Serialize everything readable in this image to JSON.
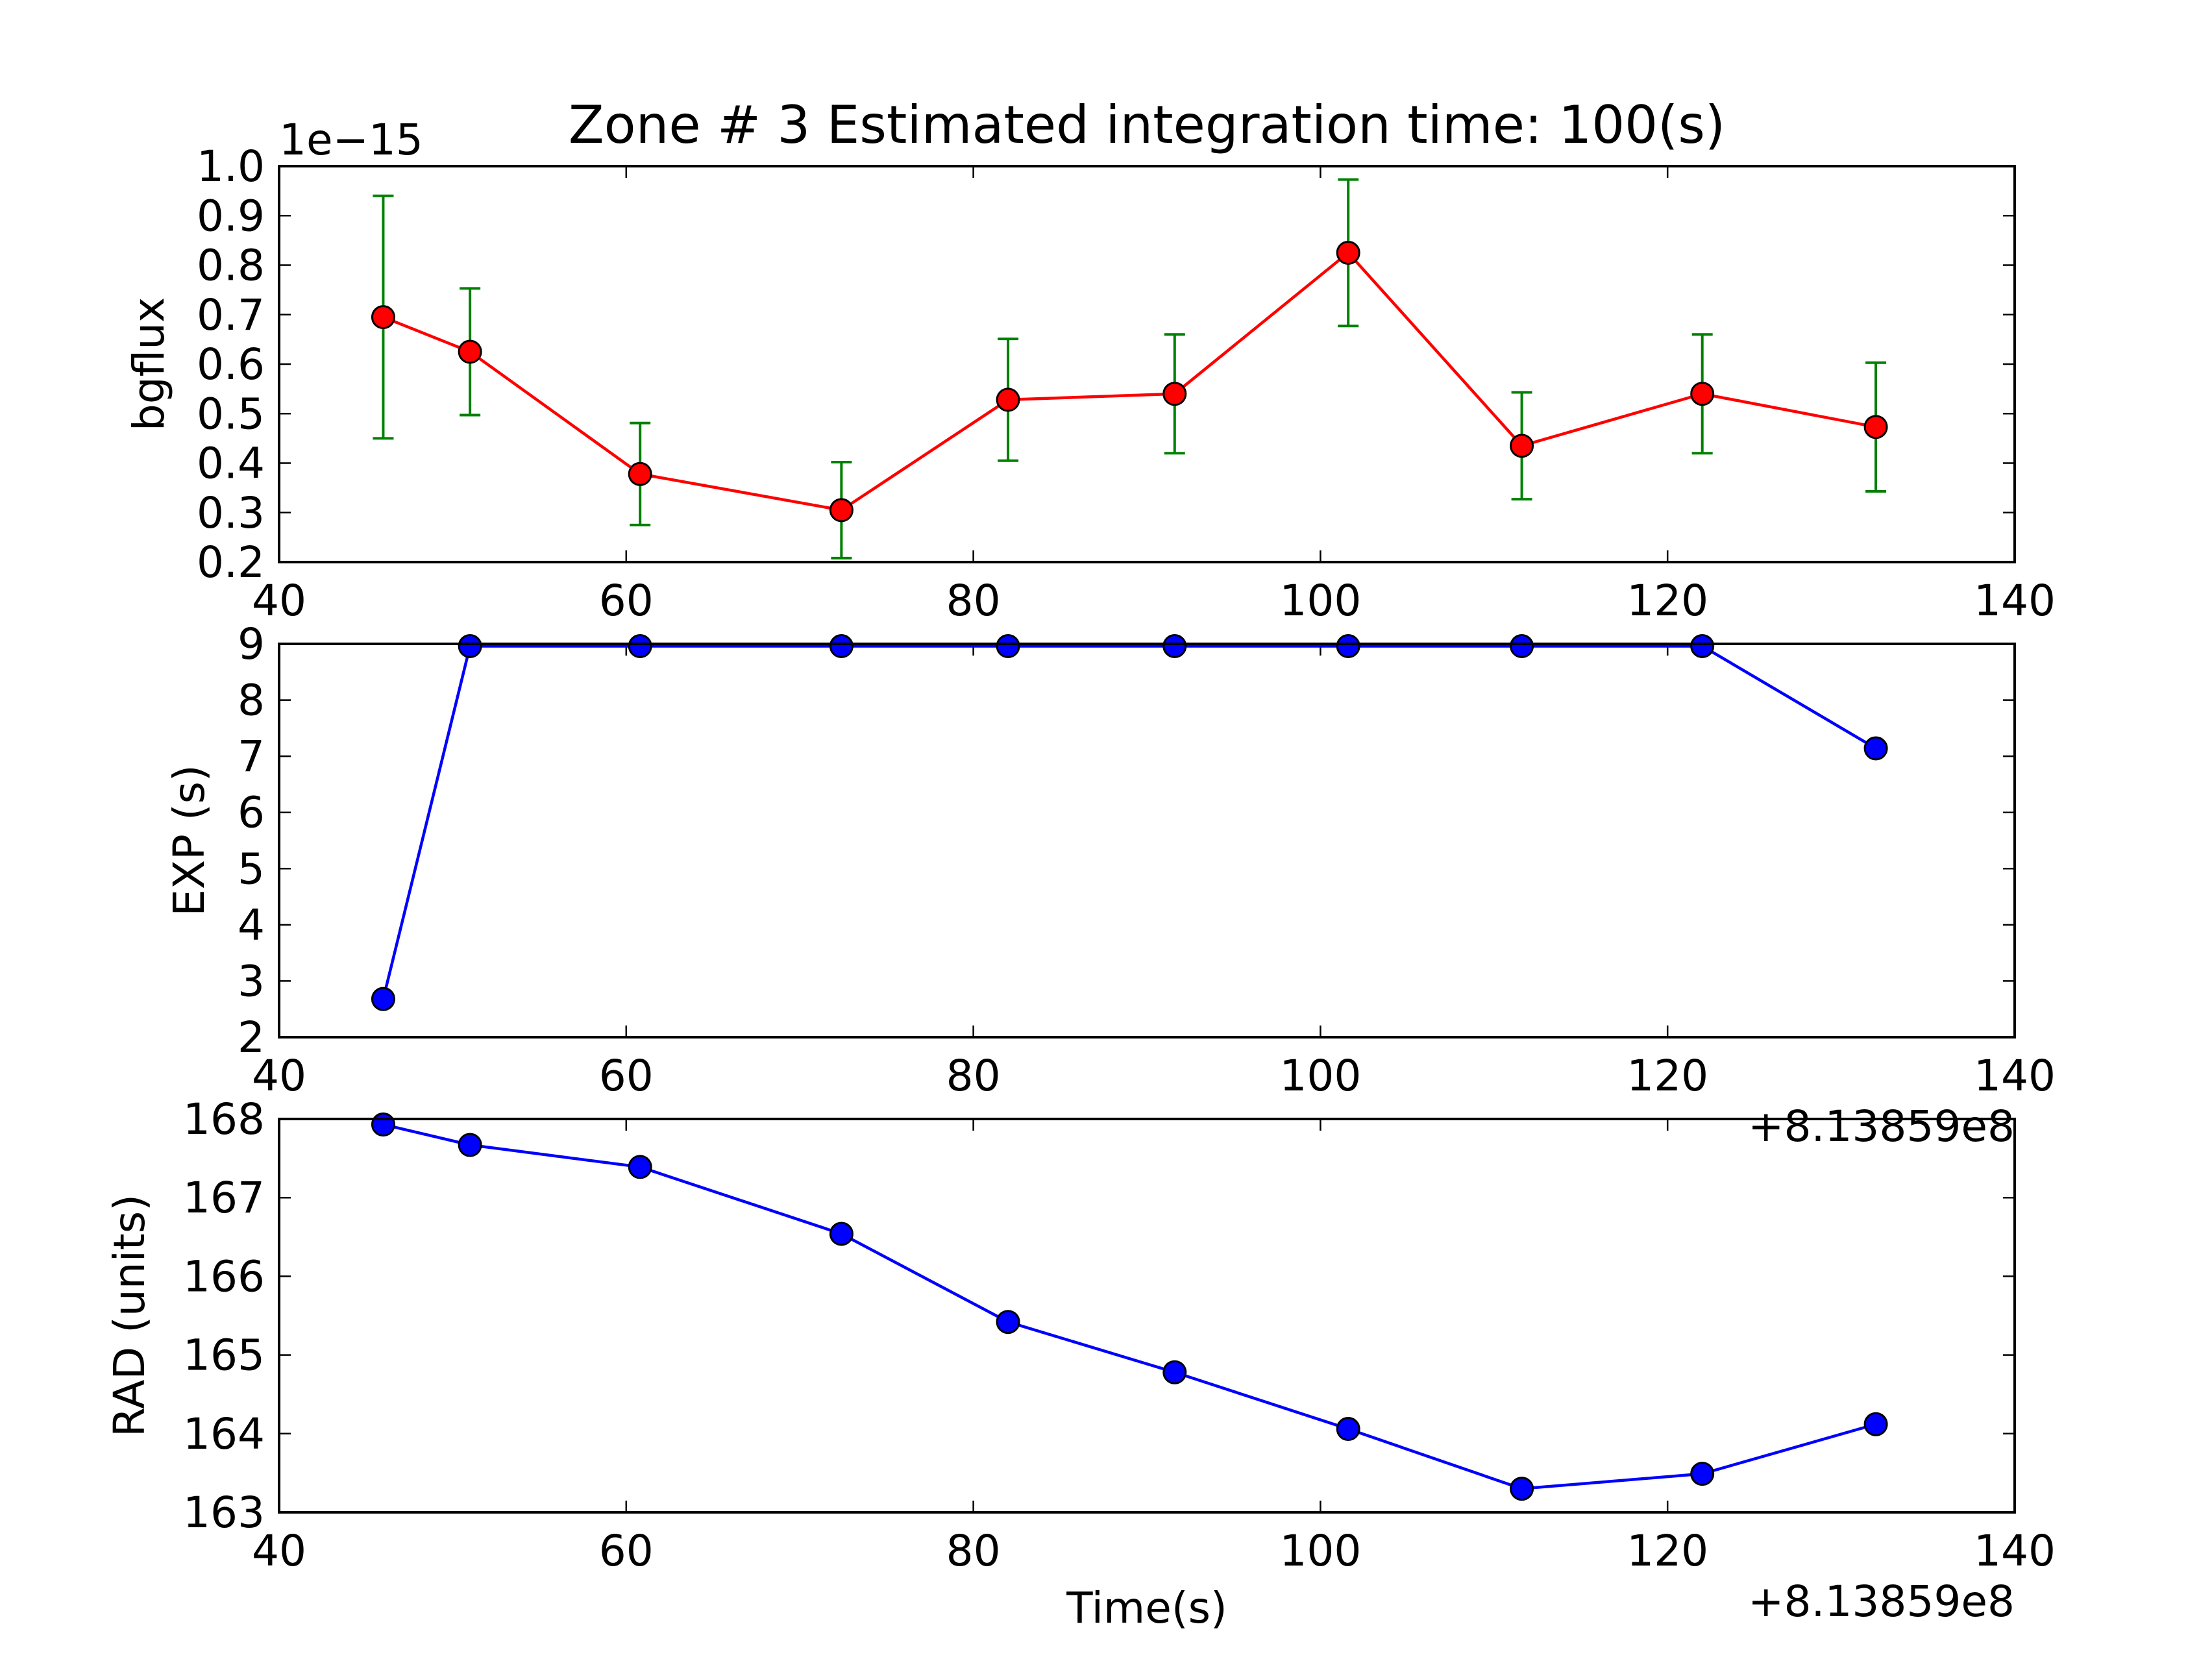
{
  "chart_data": [
    {
      "type": "line",
      "title": "Zone # 3 Estimated integration time: 100(s)",
      "ylabel": "bgflux",
      "xlabel": "",
      "x_offset_label": "",
      "y_scale_label": "1e−15",
      "xlim": [
        40,
        140
      ],
      "ylim": [
        0.2,
        1.0
      ],
      "xticks": [
        "40",
        "60",
        "80",
        "100",
        "120",
        "140"
      ],
      "yticks": [
        "0.2",
        "0.3",
        "0.4",
        "0.5",
        "0.6",
        "0.7",
        "0.8",
        "0.9",
        "1.0"
      ],
      "line_color": "#ff0000",
      "marker_color": "#ff0000",
      "error_color": "#008000",
      "series": [
        {
          "x": [
            46,
            51,
            60.8,
            72.4,
            82,
            91.6,
            101.6,
            111.6,
            122,
            132
          ],
          "y": [
            0.695,
            0.625,
            0.378,
            0.305,
            0.528,
            0.54,
            0.825,
            0.435,
            0.54,
            0.473
          ],
          "yerr": [
            0.245,
            0.128,
            0.103,
            0.097,
            0.123,
            0.12,
            0.148,
            0.108,
            0.12,
            0.13
          ]
        }
      ],
      "grid": false
    },
    {
      "type": "line",
      "ylabel": "EXP (s)",
      "xlabel": "",
      "x_offset_label": "+8.13859e8",
      "xlim": [
        40,
        140
      ],
      "ylim": [
        2,
        9
      ],
      "xticks": [
        "40",
        "60",
        "80",
        "100",
        "120",
        "140"
      ],
      "yticks": [
        "2",
        "3",
        "4",
        "5",
        "6",
        "7",
        "8",
        "9"
      ],
      "line_color": "#0000ff",
      "marker_color": "#0000ff",
      "series": [
        {
          "x": [
            46,
            51,
            60.8,
            72.4,
            82,
            91.6,
            101.6,
            111.6,
            122,
            132
          ],
          "y": [
            2.68,
            8.96,
            8.96,
            8.96,
            8.96,
            8.96,
            8.96,
            8.96,
            8.96,
            7.14
          ]
        }
      ],
      "grid": false
    },
    {
      "type": "line",
      "ylabel": "RAD (units)",
      "xlabel": "Time(s)",
      "x_offset_label": "+8.13859e8",
      "xlim": [
        40,
        140
      ],
      "ylim": [
        163,
        168
      ],
      "xticks": [
        "40",
        "60",
        "80",
        "100",
        "120",
        "140"
      ],
      "yticks": [
        "163",
        "164",
        "165",
        "166",
        "167",
        "168"
      ],
      "line_color": "#0000ff",
      "marker_color": "#0000ff",
      "series": [
        {
          "x": [
            46,
            51,
            60.8,
            72.4,
            82,
            91.6,
            101.6,
            111.6,
            122,
            132
          ],
          "y": [
            167.93,
            167.67,
            167.39,
            166.54,
            165.42,
            164.78,
            164.06,
            163.3,
            163.49,
            164.12
          ]
        }
      ],
      "grid": false
    }
  ]
}
